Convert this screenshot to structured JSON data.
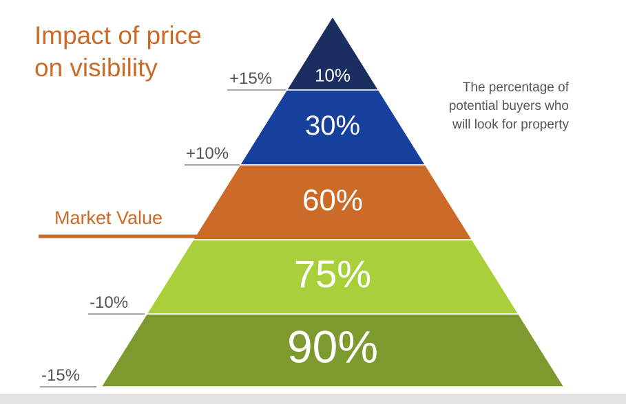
{
  "title": {
    "line1": "Impact of price",
    "line2": "on visibility"
  },
  "caption": {
    "line1": "The percentage of",
    "line2": "potential buyers who",
    "line3": "will look for property"
  },
  "market_label": "Market Value",
  "tiers": [
    {
      "value": "10%",
      "color": "#1a2f60"
    },
    {
      "value": "30%",
      "color": "#17409c"
    },
    {
      "value": "60%",
      "color": "#cc6a28"
    },
    {
      "value": "75%",
      "color": "#a9d03a"
    },
    {
      "value": "90%",
      "color": "#7c9a2e"
    }
  ],
  "price_labels": [
    "+15%",
    "+10%",
    "-10%",
    "-15%"
  ],
  "colors": {
    "accent_orange": "#cc6a28",
    "label_gray": "#555555",
    "line_gray": "#a6a6a6",
    "tier_text": "#ffffff"
  }
}
